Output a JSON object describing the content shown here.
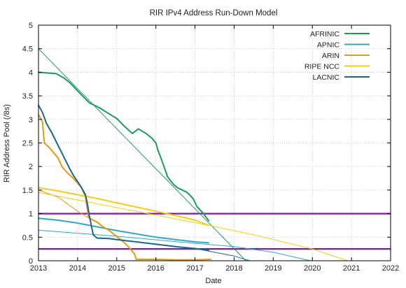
{
  "chart_data": {
    "type": "line",
    "title": "RIR IPv4 Address Run-Down Model",
    "xlabel": "Date",
    "ylabel": "RIR Address Pool (/8s)",
    "xlim": [
      2013,
      2022
    ],
    "ylim": [
      0,
      5
    ],
    "xticks": [
      "2013",
      "2014",
      "2015",
      "2016",
      "2017",
      "2018",
      "2019",
      "2020",
      "2021",
      "2022"
    ],
    "yticks": [
      "0",
      "0.5",
      "1",
      "1.5",
      "2",
      "2.5",
      "3",
      "3.5",
      "4",
      "4.5",
      "5"
    ],
    "grid": true,
    "legend_position": "top-right",
    "series": [
      {
        "name": "AFRINIC",
        "color": "#1e9a5c",
        "kind": "actual",
        "points": [
          [
            2013.0,
            4.0
          ],
          [
            2013.45,
            3.97
          ],
          [
            2013.65,
            3.88
          ],
          [
            2013.8,
            3.78
          ],
          [
            2013.95,
            3.65
          ],
          [
            2014.1,
            3.52
          ],
          [
            2014.3,
            3.35
          ],
          [
            2014.55,
            3.25
          ],
          [
            2014.8,
            3.12
          ],
          [
            2015.0,
            3.02
          ],
          [
            2015.2,
            2.85
          ],
          [
            2015.4,
            2.7
          ],
          [
            2015.55,
            2.8
          ],
          [
            2015.75,
            2.7
          ],
          [
            2015.9,
            2.6
          ],
          [
            2016.0,
            2.5
          ],
          [
            2016.05,
            2.35
          ],
          [
            2016.12,
            2.2
          ],
          [
            2016.2,
            2.02
          ],
          [
            2016.3,
            1.78
          ],
          [
            2016.45,
            1.62
          ],
          [
            2016.55,
            1.55
          ],
          [
            2016.8,
            1.45
          ],
          [
            2016.95,
            1.32
          ],
          [
            2017.05,
            1.15
          ],
          [
            2017.2,
            1.02
          ],
          [
            2017.35,
            0.85
          ]
        ]
      },
      {
        "name": "APNIC",
        "color": "#33a6c8",
        "kind": "actual",
        "points": [
          [
            2013.0,
            0.9
          ],
          [
            2013.5,
            0.86
          ],
          [
            2014.0,
            0.8
          ],
          [
            2014.5,
            0.72
          ],
          [
            2015.0,
            0.64
          ],
          [
            2015.5,
            0.57
          ],
          [
            2016.0,
            0.5
          ],
          [
            2016.5,
            0.45
          ],
          [
            2017.0,
            0.4
          ],
          [
            2017.35,
            0.38
          ]
        ]
      },
      {
        "name": "ARIN",
        "color": "#e39b12",
        "kind": "actual",
        "points": [
          [
            2013.0,
            3.1
          ],
          [
            2013.1,
            2.95
          ],
          [
            2013.15,
            2.5
          ],
          [
            2013.3,
            2.38
          ],
          [
            2013.5,
            2.18
          ],
          [
            2013.6,
            2.0
          ],
          [
            2013.72,
            1.88
          ],
          [
            2013.85,
            1.78
          ],
          [
            2014.0,
            1.65
          ],
          [
            2014.1,
            1.55
          ],
          [
            2014.15,
            1.45
          ],
          [
            2014.2,
            1.35
          ],
          [
            2014.25,
            1.1
          ],
          [
            2014.28,
            0.92
          ],
          [
            2014.35,
            0.88
          ],
          [
            2014.5,
            0.82
          ],
          [
            2014.65,
            0.72
          ],
          [
            2014.8,
            0.65
          ],
          [
            2014.9,
            0.58
          ],
          [
            2015.05,
            0.48
          ],
          [
            2015.2,
            0.38
          ],
          [
            2015.35,
            0.25
          ],
          [
            2015.45,
            0.15
          ],
          [
            2015.5,
            0.03
          ],
          [
            2016.0,
            0.03
          ],
          [
            2016.5,
            0.02
          ],
          [
            2017.0,
            0.02
          ],
          [
            2017.4,
            0.03
          ]
        ]
      },
      {
        "name": "RIPE NCC",
        "color": "#f2cc1b",
        "kind": "actual",
        "points": [
          [
            2013.0,
            1.55
          ],
          [
            2013.5,
            1.48
          ],
          [
            2014.0,
            1.4
          ],
          [
            2014.5,
            1.32
          ],
          [
            2015.0,
            1.23
          ],
          [
            2015.5,
            1.14
          ],
          [
            2016.0,
            1.05
          ],
          [
            2016.5,
            0.96
          ],
          [
            2017.0,
            0.86
          ],
          [
            2017.35,
            0.75
          ]
        ]
      },
      {
        "name": "LACNIC",
        "color": "#1c6690",
        "kind": "actual",
        "points": [
          [
            2013.0,
            3.3
          ],
          [
            2013.1,
            3.15
          ],
          [
            2013.2,
            2.92
          ],
          [
            2013.35,
            2.7
          ],
          [
            2013.5,
            2.45
          ],
          [
            2013.65,
            2.2
          ],
          [
            2013.8,
            1.95
          ],
          [
            2013.9,
            1.8
          ],
          [
            2014.0,
            1.68
          ],
          [
            2014.1,
            1.55
          ],
          [
            2014.2,
            1.4
          ],
          [
            2014.25,
            1.2
          ],
          [
            2014.3,
            0.95
          ],
          [
            2014.35,
            0.75
          ],
          [
            2014.4,
            0.55
          ],
          [
            2014.5,
            0.48
          ],
          [
            2014.8,
            0.47
          ],
          [
            2015.0,
            0.45
          ],
          [
            2015.5,
            0.4
          ],
          [
            2016.0,
            0.35
          ],
          [
            2016.5,
            0.3
          ],
          [
            2017.0,
            0.26
          ],
          [
            2017.35,
            0.22
          ]
        ]
      },
      {
        "name": "",
        "color": "#1e9a5c",
        "kind": "model",
        "points": [
          [
            2013.0,
            4.5
          ],
          [
            2018.3,
            0.0
          ]
        ]
      },
      {
        "name": "",
        "color": "#33a6c8",
        "kind": "model",
        "points": [
          [
            2013.0,
            0.65
          ],
          [
            2015.0,
            0.52
          ],
          [
            2017.0,
            0.37
          ],
          [
            2018.0,
            0.3
          ],
          [
            2019.0,
            0.18
          ],
          [
            2019.95,
            0.0
          ]
        ]
      },
      {
        "name": "",
        "color": "#e39b12",
        "kind": "model",
        "points": [
          [
            2013.0,
            1.5
          ],
          [
            2013.5,
            1.35
          ],
          [
            2014.0,
            1.05
          ],
          [
            2014.3,
            0.9
          ]
        ]
      },
      {
        "name": "",
        "color": "#f2cc1b",
        "kind": "model",
        "points": [
          [
            2013.0,
            1.45
          ],
          [
            2017.35,
            0.75
          ],
          [
            2018.5,
            0.55
          ],
          [
            2020.0,
            0.25
          ],
          [
            2020.9,
            0.0
          ]
        ]
      },
      {
        "name": "",
        "color": "#1c6690",
        "kind": "model",
        "points": [
          [
            2017.0,
            0.26
          ],
          [
            2018.0,
            0.1
          ],
          [
            2018.4,
            0.0
          ]
        ]
      }
    ],
    "reference_lines": [
      {
        "y": 1.0,
        "color": "#7a1fa2"
      },
      {
        "y": 0.25,
        "color": "#7a1fa2"
      }
    ]
  }
}
